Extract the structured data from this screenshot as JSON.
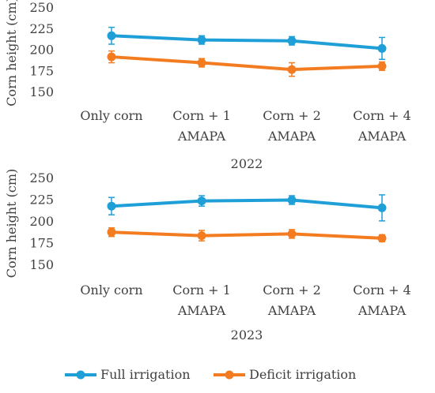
{
  "chart_data": [
    {
      "type": "line",
      "title": "2022",
      "ylabel": "Corn height (cm)",
      "xlabel": "",
      "ylim": [
        150,
        250
      ],
      "yticks": [
        150,
        175,
        200,
        225,
        250
      ],
      "categories": [
        [
          "Only corn"
        ],
        [
          "Corn + 1",
          "AMAPA"
        ],
        [
          "Corn + 2",
          "AMAPA"
        ],
        [
          "Corn + 4",
          "AMAPA"
        ]
      ],
      "series": [
        {
          "name": "Full irrigation",
          "color": "#1f9fd8",
          "values": [
            217,
            212,
            211,
            202
          ],
          "errors": [
            10,
            5,
            5,
            13
          ]
        },
        {
          "name": "Deficit irrigation",
          "color": "#f47c20",
          "values": [
            192,
            185,
            177,
            181
          ],
          "errors": [
            7,
            5,
            8,
            5
          ]
        }
      ]
    },
    {
      "type": "line",
      "title": "2023",
      "ylabel": "Corn height (cm)",
      "xlabel": "",
      "ylim": [
        150,
        250
      ],
      "yticks": [
        150,
        175,
        200,
        225,
        250
      ],
      "categories": [
        [
          "Only corn"
        ],
        [
          "Corn + 1",
          "AMAPA"
        ],
        [
          "Corn + 2",
          "AMAPA"
        ],
        [
          "Corn + 4",
          "AMAPA"
        ]
      ],
      "series": [
        {
          "name": "Full irrigation",
          "color": "#1f9fd8",
          "values": [
            218,
            224,
            225,
            216
          ],
          "errors": [
            10,
            6,
            5,
            15
          ]
        },
        {
          "name": "Deficit irrigation",
          "color": "#f47c20",
          "values": [
            188,
            184,
            186,
            181
          ],
          "errors": [
            5,
            6,
            5,
            4
          ]
        }
      ]
    }
  ],
  "legend": [
    {
      "label": "Full irrigation",
      "color": "#1f9fd8"
    },
    {
      "label": "Deficit irrigation",
      "color": "#f47c20"
    }
  ]
}
